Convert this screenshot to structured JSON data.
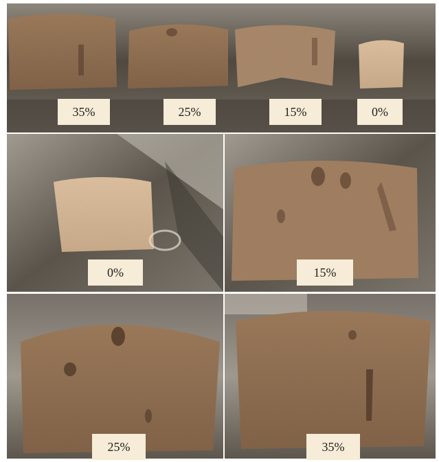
{
  "colors": {
    "tray_dark": "#4f4940",
    "tray_light": "#9c968c",
    "cake_dark": "#8a6a4f",
    "cake_light": "#c9a88a",
    "cake_pale": "#d6b89a",
    "label_bg": "#f6ecd7"
  },
  "top": {
    "labels": [
      "35%",
      "25%",
      "15%",
      "0%"
    ]
  },
  "mid": {
    "left_label": "0%",
    "right_label": "15%"
  },
  "bottom": {
    "left_label": "25%",
    "right_label": "35%"
  }
}
